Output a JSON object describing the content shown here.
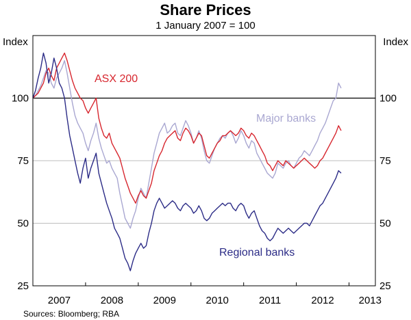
{
  "chart_data": {
    "type": "line",
    "title": "Share Prices",
    "subtitle": "1 January 2007 = 100",
    "ylabel_left": "Index",
    "ylabel_right": "Index",
    "xlabel": "",
    "ylim": [
      25,
      125
    ],
    "yticks": [
      25,
      50,
      75,
      100
    ],
    "xlim": [
      2007.0,
      2013.5
    ],
    "xticks": [
      "2007",
      "2008",
      "2009",
      "2010",
      "2011",
      "2012",
      "2013"
    ],
    "reference_line": 100,
    "source": "Sources: Bloomberg; RBA",
    "series": [
      {
        "name": "ASX 200",
        "color": "#d7262e",
        "x": [
          2007.0,
          2007.05,
          2007.1,
          2007.15,
          2007.2,
          2007.25,
          2007.3,
          2007.35,
          2007.4,
          2007.45,
          2007.5,
          2007.55,
          2007.6,
          2007.65,
          2007.7,
          2007.75,
          2007.8,
          2007.85,
          2007.9,
          2007.95,
          2008.0,
          2008.05,
          2008.1,
          2008.15,
          2008.2,
          2008.25,
          2008.3,
          2008.35,
          2008.4,
          2008.45,
          2008.5,
          2008.55,
          2008.6,
          2008.65,
          2008.7,
          2008.75,
          2008.8,
          2008.85,
          2008.9,
          2008.95,
          2009.0,
          2009.05,
          2009.1,
          2009.15,
          2009.2,
          2009.25,
          2009.3,
          2009.35,
          2009.4,
          2009.45,
          2009.5,
          2009.55,
          2009.6,
          2009.65,
          2009.7,
          2009.75,
          2009.8,
          2009.85,
          2009.9,
          2009.95,
          2010.0,
          2010.05,
          2010.1,
          2010.15,
          2010.2,
          2010.25,
          2010.3,
          2010.35,
          2010.4,
          2010.45,
          2010.5,
          2010.55,
          2010.6,
          2010.65,
          2010.7,
          2010.75,
          2010.8,
          2010.85,
          2010.9,
          2010.95,
          2011.0,
          2011.05,
          2011.1,
          2011.15,
          2011.2,
          2011.25,
          2011.3,
          2011.35,
          2011.4,
          2011.45,
          2011.5,
          2011.55,
          2011.6,
          2011.65,
          2011.7,
          2011.75,
          2011.8,
          2011.85,
          2011.9,
          2011.95,
          2012.0,
          2012.05,
          2012.1,
          2012.15,
          2012.2,
          2012.25,
          2012.3,
          2012.35,
          2012.4,
          2012.45,
          2012.5,
          2012.55,
          2012.6,
          2012.65,
          2012.7,
          2012.75,
          2012.8,
          2012.85
        ],
        "values": [
          100,
          101,
          102,
          104,
          106,
          110,
          112,
          109,
          107,
          112,
          114,
          116,
          118,
          115,
          111,
          107,
          104,
          102,
          100,
          99,
          96,
          94,
          96,
          98,
          100,
          92,
          88,
          85,
          84,
          86,
          82,
          80,
          78,
          76,
          72,
          68,
          65,
          62,
          60,
          58,
          61,
          63,
          61,
          60,
          63,
          66,
          71,
          74,
          77,
          79,
          82,
          84,
          85,
          86,
          87,
          84,
          83,
          86,
          88,
          87,
          85,
          82,
          84,
          86,
          85,
          81,
          77,
          76,
          78,
          80,
          82,
          83,
          85,
          85,
          86,
          87,
          86,
          85,
          86,
          88,
          87,
          85,
          84,
          86,
          85,
          83,
          81,
          79,
          77,
          74,
          73,
          71,
          73,
          75,
          74,
          73,
          75,
          74,
          73,
          72,
          73,
          74,
          75,
          76,
          75,
          74,
          73,
          72,
          73,
          75,
          76,
          78,
          80,
          82,
          84,
          86,
          89,
          87
        ]
      },
      {
        "name": "Major banks",
        "color": "#a9a7d1",
        "x": [
          2007.0,
          2007.05,
          2007.1,
          2007.15,
          2007.2,
          2007.25,
          2007.3,
          2007.35,
          2007.4,
          2007.45,
          2007.5,
          2007.55,
          2007.6,
          2007.65,
          2007.7,
          2007.75,
          2007.8,
          2007.85,
          2007.9,
          2007.95,
          2008.0,
          2008.05,
          2008.1,
          2008.15,
          2008.2,
          2008.25,
          2008.3,
          2008.35,
          2008.4,
          2008.45,
          2008.5,
          2008.55,
          2008.6,
          2008.65,
          2008.7,
          2008.75,
          2008.8,
          2008.85,
          2008.9,
          2008.95,
          2009.0,
          2009.05,
          2009.1,
          2009.15,
          2009.2,
          2009.25,
          2009.3,
          2009.35,
          2009.4,
          2009.45,
          2009.5,
          2009.55,
          2009.6,
          2009.65,
          2009.7,
          2009.75,
          2009.8,
          2009.85,
          2009.9,
          2009.95,
          2010.0,
          2010.05,
          2010.1,
          2010.15,
          2010.2,
          2010.25,
          2010.3,
          2010.35,
          2010.4,
          2010.45,
          2010.5,
          2010.55,
          2010.6,
          2010.65,
          2010.7,
          2010.75,
          2010.8,
          2010.85,
          2010.9,
          2010.95,
          2011.0,
          2011.05,
          2011.1,
          2011.15,
          2011.2,
          2011.25,
          2011.3,
          2011.35,
          2011.4,
          2011.45,
          2011.5,
          2011.55,
          2011.6,
          2011.65,
          2011.7,
          2011.75,
          2011.8,
          2011.85,
          2011.9,
          2011.95,
          2012.0,
          2012.05,
          2012.1,
          2012.15,
          2012.2,
          2012.25,
          2012.3,
          2012.35,
          2012.4,
          2012.45,
          2012.5,
          2012.55,
          2012.6,
          2012.65,
          2012.7,
          2012.75,
          2012.8,
          2012.85
        ],
        "values": [
          100,
          101,
          103,
          105,
          108,
          111,
          110,
          106,
          104,
          108,
          110,
          112,
          115,
          110,
          104,
          98,
          93,
          90,
          88,
          86,
          82,
          79,
          83,
          86,
          90,
          84,
          80,
          77,
          74,
          75,
          72,
          70,
          68,
          62,
          57,
          52,
          50,
          48,
          52,
          55,
          60,
          64,
          62,
          60,
          66,
          72,
          78,
          82,
          86,
          88,
          90,
          86,
          87,
          89,
          90,
          86,
          85,
          88,
          91,
          89,
          86,
          82,
          84,
          87,
          84,
          79,
          75,
          74,
          77,
          80,
          82,
          84,
          85,
          84,
          86,
          87,
          85,
          82,
          84,
          87,
          85,
          82,
          80,
          83,
          82,
          78,
          76,
          74,
          72,
          70,
          69,
          68,
          70,
          74,
          73,
          72,
          74,
          75,
          73,
          72,
          74,
          76,
          77,
          79,
          78,
          77,
          79,
          81,
          83,
          86,
          88,
          90,
          93,
          96,
          99,
          100,
          106,
          104
        ]
      },
      {
        "name": "Regional banks",
        "color": "#2b2b86",
        "x": [
          2007.0,
          2007.05,
          2007.1,
          2007.15,
          2007.2,
          2007.25,
          2007.3,
          2007.35,
          2007.4,
          2007.45,
          2007.5,
          2007.55,
          2007.6,
          2007.65,
          2007.7,
          2007.75,
          2007.8,
          2007.85,
          2007.9,
          2007.95,
          2008.0,
          2008.05,
          2008.1,
          2008.15,
          2008.2,
          2008.25,
          2008.3,
          2008.35,
          2008.4,
          2008.45,
          2008.5,
          2008.55,
          2008.6,
          2008.65,
          2008.7,
          2008.75,
          2008.8,
          2008.85,
          2008.9,
          2008.95,
          2009.0,
          2009.05,
          2009.1,
          2009.15,
          2009.2,
          2009.25,
          2009.3,
          2009.35,
          2009.4,
          2009.45,
          2009.5,
          2009.55,
          2009.6,
          2009.65,
          2009.7,
          2009.75,
          2009.8,
          2009.85,
          2009.9,
          2009.95,
          2010.0,
          2010.05,
          2010.1,
          2010.15,
          2010.2,
          2010.25,
          2010.3,
          2010.35,
          2010.4,
          2010.45,
          2010.5,
          2010.55,
          2010.6,
          2010.65,
          2010.7,
          2010.75,
          2010.8,
          2010.85,
          2010.9,
          2010.95,
          2011.0,
          2011.05,
          2011.1,
          2011.15,
          2011.2,
          2011.25,
          2011.3,
          2011.35,
          2011.4,
          2011.45,
          2011.5,
          2011.55,
          2011.6,
          2011.65,
          2011.7,
          2011.75,
          2011.8,
          2011.85,
          2011.9,
          2011.95,
          2012.0,
          2012.05,
          2012.1,
          2012.15,
          2012.2,
          2012.25,
          2012.3,
          2012.35,
          2012.4,
          2012.45,
          2012.5,
          2012.55,
          2012.6,
          2012.65,
          2012.7,
          2012.75,
          2012.8,
          2012.85
        ],
        "values": [
          100,
          103,
          108,
          112,
          118,
          114,
          106,
          110,
          116,
          112,
          106,
          104,
          100,
          92,
          85,
          80,
          75,
          70,
          66,
          72,
          76,
          68,
          72,
          75,
          78,
          70,
          66,
          62,
          58,
          55,
          52,
          48,
          46,
          44,
          40,
          36,
          34,
          31,
          35,
          38,
          40,
          42,
          40,
          41,
          46,
          50,
          55,
          58,
          60,
          58,
          56,
          57,
          58,
          59,
          58,
          56,
          55,
          57,
          58,
          57,
          56,
          54,
          55,
          57,
          55,
          52,
          51,
          52,
          54,
          55,
          56,
          57,
          58,
          57,
          58,
          58,
          56,
          55,
          57,
          58,
          57,
          54,
          52,
          54,
          55,
          52,
          49,
          47,
          46,
          44,
          43,
          44,
          46,
          48,
          47,
          46,
          47,
          48,
          47,
          46,
          47,
          48,
          49,
          50,
          50,
          49,
          51,
          53,
          55,
          57,
          58,
          60,
          62,
          64,
          66,
          68,
          71,
          70
        ]
      }
    ],
    "annotations": [
      {
        "text": "ASX 200",
        "series": "ASX 200"
      },
      {
        "text": "Major banks",
        "series": "Major banks"
      },
      {
        "text": "Regional banks",
        "series": "Regional banks"
      }
    ]
  }
}
